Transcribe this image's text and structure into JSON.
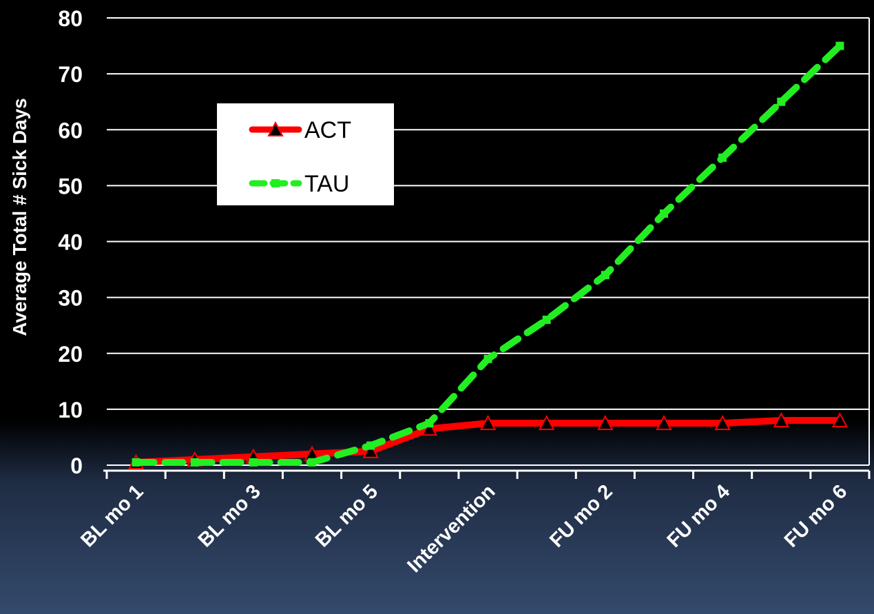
{
  "chart_data": {
    "type": "line",
    "ylabel": "Average Total # Sick Days",
    "ylim": [
      0,
      80
    ],
    "yticks": [
      0,
      10,
      20,
      30,
      40,
      50,
      60,
      70,
      80
    ],
    "x_tick_labels": [
      "BL mo 1",
      "BL mo 3",
      "BL mo 5",
      "Intervention",
      "FU mo 2",
      "FU mo 4",
      "FU mo 6"
    ],
    "legend_position": "upper-left",
    "grid": true,
    "series": [
      {
        "name": "ACT",
        "color": "#ff0000",
        "marker": "triangle",
        "values": [
          0.5,
          1,
          1.5,
          2,
          2.5,
          6.5,
          7.5,
          7.5,
          7.5,
          7.5,
          7.5,
          8,
          8
        ]
      },
      {
        "name": "TAU",
        "color": "#22ee22",
        "marker": "square",
        "line_style": "dashed",
        "values": [
          0.5,
          0.5,
          0.5,
          0.5,
          3.5,
          7.5,
          19,
          26,
          34,
          45,
          55,
          65,
          75
        ]
      }
    ]
  }
}
